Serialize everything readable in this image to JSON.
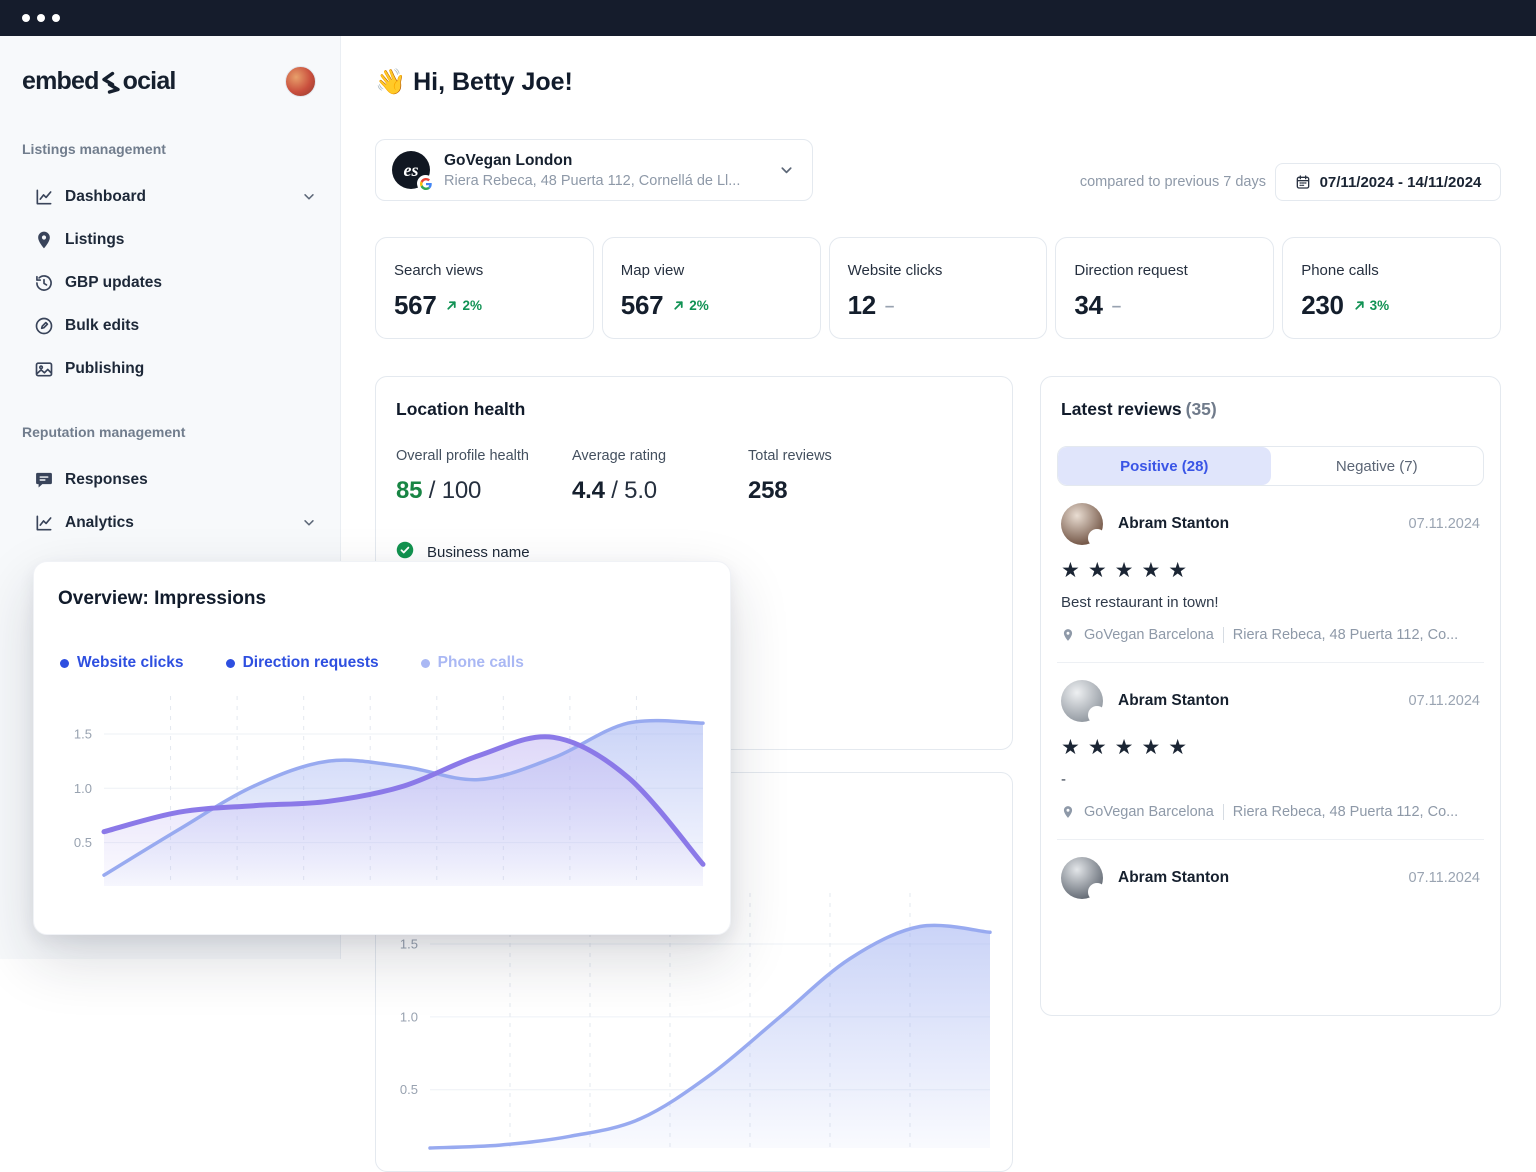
{
  "window": {
    "controls": [
      "dot",
      "dot",
      "dot"
    ]
  },
  "brand": {
    "left": "embed",
    "right": "ocial"
  },
  "sidebar": {
    "sections": [
      {
        "label": "Listings management",
        "items": [
          {
            "label": "Dashboard",
            "icon": "chart-line-icon",
            "chevron": true
          },
          {
            "label": "Listings",
            "icon": "map-pin-icon",
            "chevron": false
          },
          {
            "label": "GBP updates",
            "icon": "history-icon",
            "chevron": false
          },
          {
            "label": "Bulk edits",
            "icon": "edit-icon",
            "chevron": false
          },
          {
            "label": "Publishing",
            "icon": "image-icon",
            "chevron": false
          }
        ]
      },
      {
        "label": "Reputation management",
        "items": [
          {
            "label": "Responses",
            "icon": "message-icon",
            "chevron": false
          },
          {
            "label": "Analytics",
            "icon": "chart-line-icon",
            "chevron": true
          }
        ]
      }
    ]
  },
  "header": {
    "greeting_emoji": "👋",
    "greeting": "Hi, Betty Joe!"
  },
  "business_selector": {
    "logo_text": "es",
    "name": "GoVegan London",
    "address": "Riera Rebeca, 48 Puerta 112, Cornellá de Ll..."
  },
  "date_filter": {
    "compare_label": "compared to previous 7 days",
    "range": "07/11/2024 - 14/11/2024"
  },
  "stats": [
    {
      "label": "Search views",
      "value": "567",
      "trend": "up",
      "change": "2%"
    },
    {
      "label": "Map view",
      "value": "567",
      "trend": "up",
      "change": "2%"
    },
    {
      "label": "Website clicks",
      "value": "12",
      "trend": "flat",
      "change": ""
    },
    {
      "label": "Direction request",
      "value": "34",
      "trend": "flat",
      "change": ""
    },
    {
      "label": "Phone calls",
      "value": "230",
      "trend": "up",
      "change": "3%"
    }
  ],
  "location_health": {
    "title": "Location health",
    "metrics": [
      {
        "label": "Overall profile health",
        "value": "85",
        "suffix": " / 100",
        "value_color": "#188544"
      },
      {
        "label": "Average rating",
        "value": "4.4",
        "suffix": " / 5.0",
        "value_color": "#16202e"
      },
      {
        "label": "Total reviews",
        "value": "258",
        "suffix": "",
        "value_color": "#16202e"
      }
    ],
    "checklist": [
      {
        "label": "Business name",
        "status": "ok",
        "status_color": "#12934f"
      }
    ]
  },
  "reviews_panel": {
    "title": "Latest reviews",
    "count": "(35)",
    "tabs": [
      {
        "label": "Positive (28)",
        "active": true
      },
      {
        "label": "Negative (7)",
        "active": false
      }
    ],
    "reviews": [
      {
        "name": "Abram Stanton",
        "date": "07.11.2024",
        "stars": 5,
        "text": "Best restaurant in town!",
        "location_name": "GoVegan Barcelona",
        "location_address": "Riera Rebeca, 48 Puerta 112, Co...",
        "avatar_gradient": [
          "#e9ddd2",
          "#6d4f3f"
        ]
      },
      {
        "name": "Abram Stanton",
        "date": "07.11.2024",
        "stars": 5,
        "text": "-",
        "location_name": "GoVegan Barcelona",
        "location_address": "Riera Rebeca, 48 Puerta 112, Co...",
        "avatar_gradient": [
          "#eef0f2",
          "#8f969e"
        ]
      },
      {
        "name": "Abram Stanton",
        "date": "07.11.2024",
        "stars": null,
        "text": null,
        "location_name": null,
        "location_address": null,
        "avatar_gradient": [
          "#e3e6e9",
          "#5f6670"
        ]
      }
    ]
  },
  "chart_data": [
    {
      "type": "area",
      "title": "Overview: Impressions",
      "legend": [
        {
          "label": "Website clicks",
          "color": "#2e4fe0",
          "active": true
        },
        {
          "label": "Direction requests",
          "color": "#2e4fe0",
          "active": true
        },
        {
          "label": "Phone calls",
          "color": "#aab8f4",
          "active": false
        }
      ],
      "yticks": [
        "0.5",
        "1.0",
        "1.5"
      ],
      "ytick_values": [
        0.5,
        1.0,
        1.5
      ],
      "ylim": [
        0.1,
        1.85
      ],
      "grid": {
        "horizontal": "solid",
        "vertical": "dashed",
        "vertical_lines": 8
      },
      "series": [
        {
          "name": "Website clicks",
          "line_color": "#98aaf0",
          "fill_color": "#9fb0f1",
          "line_width": 3.5,
          "values": [
            0.2,
            0.62,
            1.02,
            1.25,
            1.2,
            1.08,
            1.28,
            1.6,
            1.6
          ]
        },
        {
          "name": "Direction requests",
          "line_color": "#8b79e8",
          "fill_color": "#c3b8f3",
          "line_width": 5,
          "values": [
            0.6,
            0.78,
            0.84,
            0.88,
            1.02,
            1.3,
            1.47,
            1.1,
            0.3
          ]
        }
      ]
    },
    {
      "type": "area",
      "title": "",
      "yticks": [
        "0.5",
        "1.0",
        "1.5"
      ],
      "ytick_values": [
        0.5,
        1.0,
        1.5
      ],
      "ylim": [
        0.1,
        1.85
      ],
      "grid": {
        "horizontal": "solid",
        "vertical": "dashed",
        "vertical_lines": 6
      },
      "series": [
        {
          "name": "",
          "line_color": "#98aaf0",
          "fill_color": "#9fb0f1",
          "line_width": 3.5,
          "values": [
            0.1,
            0.12,
            0.18,
            0.3,
            0.6,
            1.0,
            1.4,
            1.62,
            1.58
          ]
        }
      ]
    }
  ]
}
